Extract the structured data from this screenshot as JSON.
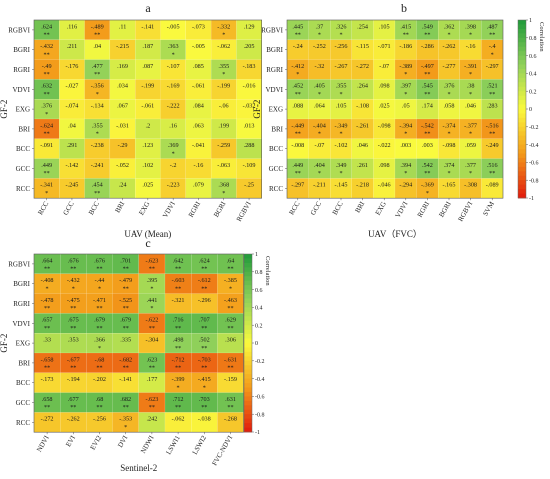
{
  "colors": {
    "scale_low": "#e11a0c",
    "scale_mid_low": "#f39a1a",
    "scale_mid": "#fafa3e",
    "scale_mid_high": "#8fd05a",
    "scale_high": "#1f9a3a"
  },
  "chart_data": [
    {
      "type": "heatmap",
      "panel_label": "a",
      "title": "",
      "xlabel": "UAV (Mean)",
      "ylabel": "GF-2",
      "x_categories": [
        "RCC",
        "GCC",
        "BCC",
        "BRI",
        "EXG",
        "VDVI",
        "RGRI",
        "BGRI",
        "RGBVI"
      ],
      "y_categories": [
        "RGBVI",
        "BGRI",
        "RGRI",
        "VDVI",
        "EXG",
        "BRI",
        "BCC",
        "GCC",
        "RCC"
      ],
      "colorbar": false,
      "values": [
        [
          0.624,
          0.116,
          -0.489,
          0.11,
          -0.141,
          -0.005,
          -0.073,
          -0.332,
          0.129
        ],
        [
          -0.432,
          0.211,
          0.04,
          -0.215,
          0.187,
          0.363,
          -0.005,
          -0.062,
          0.205
        ],
        [
          -0.49,
          -0.176,
          0.477,
          0.169,
          0.087,
          -0.107,
          0.085,
          0.355,
          -0.183
        ],
        [
          0.632,
          -0.027,
          -0.356,
          0.034,
          -0.199,
          -0.169,
          -0.061,
          -0.199,
          -0.016
        ],
        [
          0.376,
          -0.074,
          -0.134,
          0.067,
          -0.061,
          -0.222,
          0.084,
          -0.06,
          -0.032
        ],
        [
          -0.624,
          0.04,
          0.355,
          -0.031,
          0.2,
          0.16,
          0.063,
          0.199,
          0.013
        ],
        [
          -0.091,
          0.291,
          -0.238,
          -0.29,
          0.123,
          0.369,
          -0.041,
          -0.259,
          0.288
        ],
        [
          0.449,
          -0.142,
          -0.241,
          -0.052,
          0.102,
          -0.2,
          -0.16,
          -0.063,
          -0.109
        ],
        [
          -0.341,
          -0.245,
          0.454,
          0.24,
          0.025,
          -0.223,
          0.079,
          0.368,
          -0.25
        ]
      ],
      "stars": [
        [
          "**",
          "",
          "**",
          "",
          "",
          "",
          "",
          "*",
          ""
        ],
        [
          "**",
          "",
          "",
          "",
          "",
          "*",
          "",
          "",
          ""
        ],
        [
          "**",
          "",
          "**",
          "",
          "",
          "",
          "",
          "*",
          ""
        ],
        [
          "**",
          "",
          "*",
          "",
          "",
          "",
          "",
          "",
          ""
        ],
        [
          "*",
          "",
          "",
          "",
          "",
          "",
          "",
          "",
          ""
        ],
        [
          "**",
          "",
          "*",
          "",
          "",
          "",
          "",
          "",
          ""
        ],
        [
          "",
          "",
          "",
          "",
          "",
          "*",
          "",
          "",
          ""
        ],
        [
          "**",
          "",
          "",
          "",
          "",
          "",
          "",
          "",
          ""
        ],
        [
          "*",
          "",
          "**",
          "",
          "",
          "",
          "",
          "*",
          ""
        ]
      ]
    },
    {
      "type": "heatmap",
      "panel_label": "b",
      "title": "",
      "xlabel": "UAV（FVC）",
      "ylabel": "GF-2",
      "x_categories": [
        "RCC",
        "GCC",
        "BCC",
        "BRI",
        "EXG",
        "VDVI",
        "RGRI",
        "BGRI",
        "RGBVI",
        "SVM"
      ],
      "y_categories": [
        "RGBVI",
        "BGRI",
        "RGRI",
        "VDVI",
        "EXG",
        "BRI",
        "BCC",
        "GCC",
        "RCC"
      ],
      "colorbar": true,
      "colorbar_label": "Correlation",
      "colorbar_ticks": [
        "1",
        "0.8",
        "0.6",
        "0.4",
        "0.2",
        "0",
        "-0.2",
        "-0.4",
        "-0.6",
        "-0.8",
        "-1"
      ],
      "values": [
        [
          0.445,
          0.37,
          0.326,
          0.254,
          0.105,
          0.415,
          0.549,
          0.362,
          0.398,
          0.487
        ],
        [
          -0.24,
          -0.252,
          -0.256,
          -0.115,
          -0.071,
          -0.186,
          -0.286,
          -0.262,
          -0.16,
          -0.4
        ],
        [
          -0.412,
          -0.32,
          -0.267,
          -0.272,
          -0.07,
          -0.389,
          -0.497,
          -0.277,
          -0.391,
          -0.297
        ],
        [
          0.452,
          0.405,
          0.355,
          0.264,
          0.098,
          0.397,
          0.545,
          0.376,
          0.38,
          0.521
        ],
        [
          0.088,
          0.064,
          0.105,
          -0.108,
          0.025,
          0.05,
          0.174,
          0.058,
          0.046,
          0.283
        ],
        [
          -0.449,
          -0.404,
          -0.349,
          -0.261,
          -0.098,
          -0.394,
          -0.542,
          -0.374,
          -0.377,
          -0.516
        ],
        [
          -0.008,
          -0.07,
          -0.102,
          0.046,
          -0.022,
          0.003,
          0.003,
          -0.098,
          0.059,
          -0.249
        ],
        [
          0.449,
          0.404,
          0.349,
          0.261,
          0.098,
          0.394,
          0.542,
          0.374,
          0.377,
          0.516
        ],
        [
          -0.297,
          -0.211,
          -0.145,
          -0.218,
          -0.046,
          -0.294,
          -0.369,
          -0.165,
          -0.308,
          -0.089
        ]
      ],
      "stars": [
        [
          "**",
          "*",
          "*",
          "",
          "",
          "**",
          "**",
          "*",
          "*",
          "**"
        ],
        [
          "",
          "",
          "",
          "",
          "",
          "",
          "",
          "",
          "",
          "*"
        ],
        [
          "*",
          "",
          "",
          "",
          "",
          "*",
          "**",
          "",
          "*",
          ""
        ],
        [
          "**",
          "*",
          "*",
          "",
          "",
          "*",
          "**",
          "*",
          "*",
          "**"
        ],
        [
          "",
          "",
          "",
          "",
          "",
          "",
          "",
          "",
          "",
          ""
        ],
        [
          "**",
          "*",
          "*",
          "",
          "",
          "*",
          "**",
          "*",
          "*",
          "**"
        ],
        [
          "",
          "",
          "",
          "",
          "",
          "",
          "",
          "",
          "",
          ""
        ],
        [
          "**",
          "*",
          "*",
          "",
          "",
          "*",
          "**",
          "*",
          "*",
          "**"
        ],
        [
          "",
          "",
          "",
          "",
          "",
          "",
          "*",
          "",
          "",
          ""
        ]
      ]
    },
    {
      "type": "heatmap",
      "panel_label": "c",
      "title": "",
      "xlabel": "Sentinel-2",
      "ylabel": "GF-2",
      "x_categories": [
        "NDVI",
        "EVI",
        "EVI2",
        "DVI",
        "NDWI",
        "LSWI1",
        "LSWI2",
        "FVC-NDVI"
      ],
      "y_categories": [
        "RGBVI",
        "BGRI",
        "RGRI",
        "VDVI",
        "EXG",
        "BRI",
        "BCC",
        "GCC",
        "RCC"
      ],
      "colorbar": true,
      "colorbar_label": "Correlation",
      "colorbar_ticks": [
        "1",
        "0.8",
        "0.6",
        "0.4",
        "0.2",
        "0",
        "-0.2",
        "-0.4",
        "-0.6",
        "-0.8",
        "-1"
      ],
      "values": [
        [
          0.664,
          0.676,
          0.676,
          0.701,
          -0.623,
          0.642,
          0.624,
          0.64
        ],
        [
          -0.408,
          -0.432,
          -0.44,
          -0.479,
          0.395,
          -0.603,
          -0.612,
          -0.385
        ],
        [
          -0.478,
          -0.475,
          -0.471,
          -0.525,
          0.441,
          -0.321,
          -0.296,
          -0.463
        ],
        [
          0.657,
          0.675,
          0.679,
          0.679,
          -0.622,
          0.716,
          0.707,
          0.629
        ],
        [
          0.33,
          0.353,
          0.366,
          0.335,
          -0.304,
          0.498,
          0.502,
          0.306
        ],
        [
          -0.658,
          -0.677,
          -0.68,
          -0.682,
          0.623,
          -0.712,
          -0.703,
          -0.631
        ],
        [
          -0.173,
          -0.194,
          -0.202,
          -0.141,
          0.177,
          -0.399,
          -0.415,
          -0.159
        ],
        [
          0.658,
          0.677,
          0.68,
          0.682,
          -0.623,
          0.712,
          0.703,
          0.631
        ],
        [
          -0.272,
          -0.262,
          -0.256,
          -0.353,
          0.242,
          -0.062,
          -0.038,
          -0.268
        ]
      ],
      "stars": [
        [
          "**",
          "**",
          "**",
          "**",
          "**",
          "**",
          "**",
          "**"
        ],
        [
          "*",
          "*",
          "*",
          "**",
          "*",
          "**",
          "**",
          "*"
        ],
        [
          "**",
          "**",
          "**",
          "**",
          "*",
          "",
          "",
          "**"
        ],
        [
          "**",
          "**",
          "**",
          "**",
          "**",
          "**",
          "**",
          "**"
        ],
        [
          "",
          "",
          "*",
          "",
          "",
          "**",
          "**",
          ""
        ],
        [
          "**",
          "**",
          "**",
          "**",
          "**",
          "**",
          "**",
          "**"
        ],
        [
          "",
          "",
          "",
          "",
          "",
          "*",
          "*",
          ""
        ],
        [
          "**",
          "**",
          "**",
          "**",
          "**",
          "**",
          "**",
          "**"
        ],
        [
          "",
          "",
          "",
          "*",
          "",
          "",
          "",
          ""
        ]
      ]
    }
  ]
}
